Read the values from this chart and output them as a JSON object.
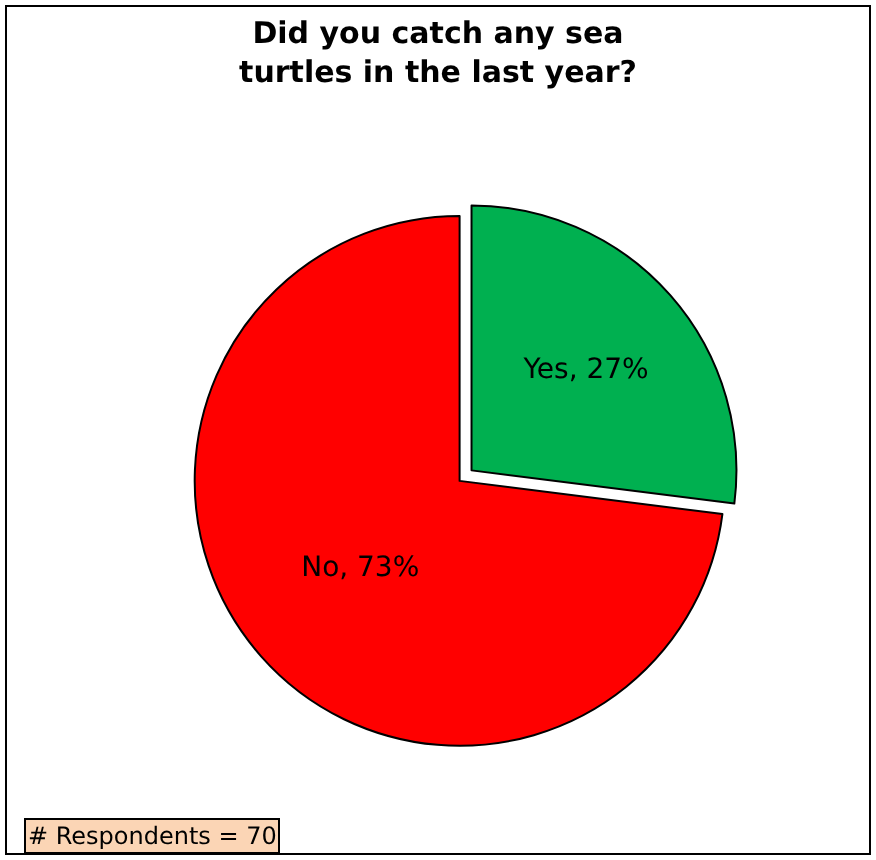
{
  "chart_data": {
    "type": "pie",
    "title": "Did you catch any sea turtles in the last year?",
    "categories": [
      "Yes",
      "No"
    ],
    "values": [
      27,
      73
    ],
    "value_labels": [
      "27%",
      "73%"
    ],
    "colors": [
      "#00b050",
      "#ff0000"
    ],
    "annotations": [
      "# Respondents = 70"
    ],
    "legend": false
  }
}
